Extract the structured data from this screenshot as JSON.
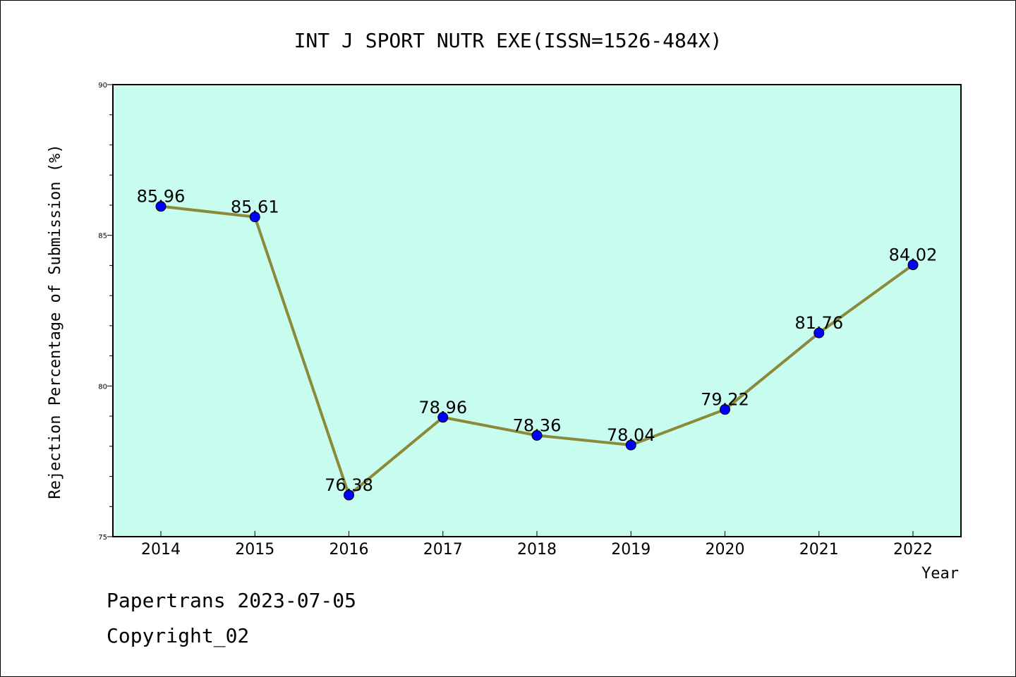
{
  "chart_data": {
    "type": "line",
    "title": "INT J SPORT NUTR EXE(ISSN=1526-484X)",
    "xlabel": "Year",
    "ylabel": "Rejection Percentage of Submission (%)",
    "categories": [
      "2014",
      "2015",
      "2016",
      "2017",
      "2018",
      "2019",
      "2020",
      "2021",
      "2022"
    ],
    "series": [
      {
        "values": [
          85.96,
          85.61,
          76.38,
          78.96,
          78.36,
          78.04,
          79.22,
          81.76,
          84.02
        ],
        "labels": [
          "85.96",
          "85.61",
          "76.38",
          "78.96",
          "78.36",
          "78.04",
          "79.22",
          "81.76",
          "84.02"
        ]
      }
    ],
    "ylim": [
      75,
      90
    ],
    "yticks": [
      "75",
      "80",
      "85",
      "90"
    ],
    "grid": false,
    "legend": "none",
    "colors": {
      "plot_background": "#c8fcee",
      "line": "#8b8a3a",
      "marker": "#0000ff"
    }
  },
  "footer": {
    "line1": "Papertrans 2023-07-05",
    "line2": "Copyright_02"
  }
}
